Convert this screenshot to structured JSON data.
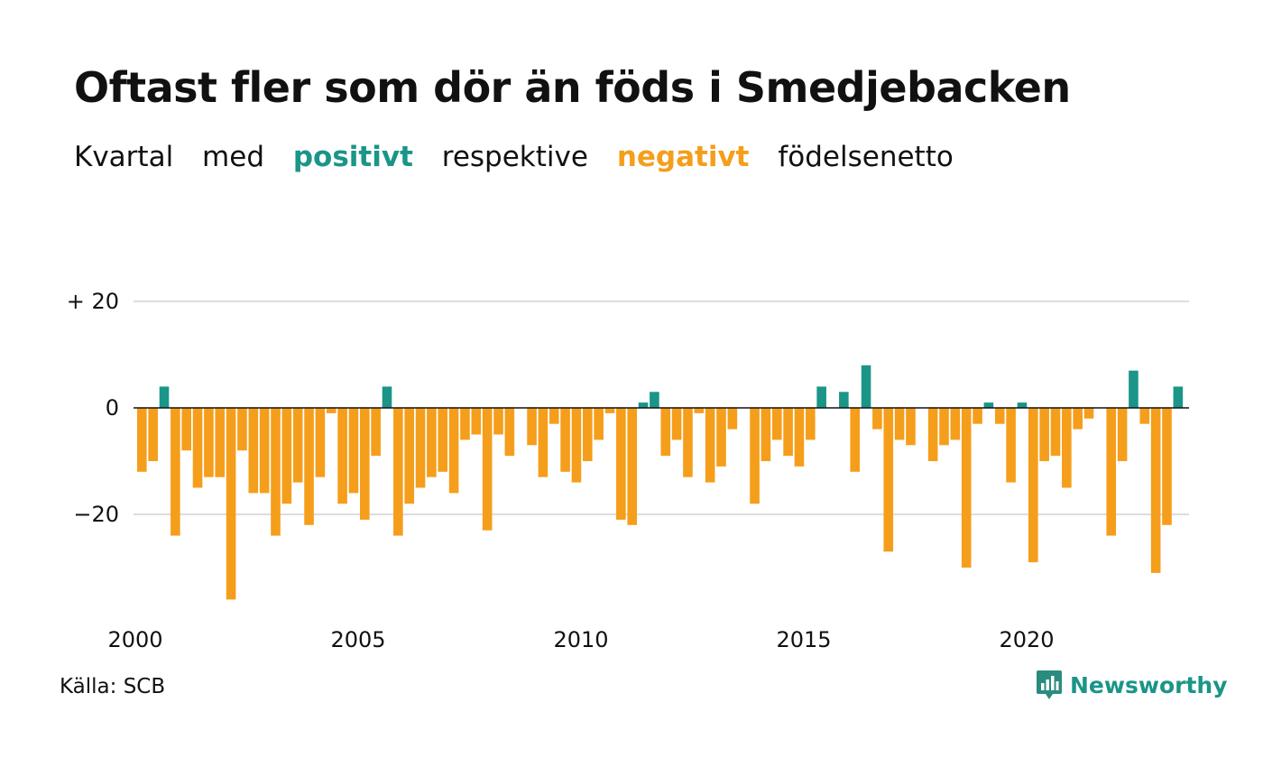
{
  "title": "Oftast fler som dör än föds i Smedjebacken",
  "subtitle": {
    "part1": "Kvartal",
    "part2": "med",
    "positive": "positivt",
    "part3": "respektive",
    "negative": "negativt",
    "part4": "födelsenetto"
  },
  "colors": {
    "positive": "#1a9588",
    "negative": "#f59e1b",
    "gridline": "#dddddd",
    "zeroline": "#111111",
    "text": "#111111"
  },
  "source": "Källa: SCB",
  "brand": {
    "name": "Newsworthy",
    "icon": "newsworthy-logo-icon"
  },
  "chart_data": {
    "type": "bar",
    "title": "Oftast fler som dör än föds i Smedjebacken",
    "subtitle": "Kvartal med positivt respektive negativt födelsenetto",
    "xlabel": "",
    "ylabel": "",
    "ylim": [
      -37,
      21
    ],
    "grid": true,
    "legend": "none",
    "y_ticks": [
      {
        "value": 20,
        "label": "+ 20"
      },
      {
        "value": 0,
        "label": "0"
      },
      {
        "value": -20,
        "label": "−20"
      }
    ],
    "x_ticks": [
      "2000",
      "2005",
      "2010",
      "2015",
      "2020"
    ],
    "categories": [
      "2000 K1",
      "2000 K2",
      "2000 K3",
      "2000 K4",
      "2001 K1",
      "2001 K2",
      "2001 K3",
      "2001 K4",
      "2002 K1",
      "2002 K2",
      "2002 K3",
      "2002 K4",
      "2003 K1",
      "2003 K2",
      "2003 K3",
      "2003 K4",
      "2004 K1",
      "2004 K2",
      "2004 K3",
      "2004 K4",
      "2005 K1",
      "2005 K2",
      "2005 K3",
      "2005 K4",
      "2006 K1",
      "2006 K2",
      "2006 K3",
      "2006 K4",
      "2007 K1",
      "2007 K2",
      "2007 K3",
      "2007 K4",
      "2008 K1",
      "2008 K2",
      "2008 K3",
      "2008 K4",
      "2009 K1",
      "2009 K2",
      "2009 K3",
      "2009 K4",
      "2010 K1",
      "2010 K2",
      "2010 K3",
      "2010 K4",
      "2011 K1",
      "2011 K2",
      "2011 K3",
      "2011 K4",
      "2012 K1",
      "2012 K2",
      "2012 K3",
      "2012 K4",
      "2013 K1",
      "2013 K2",
      "2013 K3",
      "2013 K4",
      "2014 K1",
      "2014 K2",
      "2014 K3",
      "2014 K4",
      "2015 K1",
      "2015 K2",
      "2015 K3",
      "2015 K4",
      "2016 K1",
      "2016 K2",
      "2016 K3",
      "2016 K4",
      "2017 K1",
      "2017 K2",
      "2017 K3",
      "2017 K4",
      "2018 K1",
      "2018 K2",
      "2018 K3",
      "2018 K4",
      "2019 K1",
      "2019 K2",
      "2019 K3",
      "2019 K4",
      "2020 K1",
      "2020 K2",
      "2020 K3",
      "2020 K4",
      "2021 K1",
      "2021 K2",
      "2021 K3",
      "2021 K4",
      "2022 K1",
      "2022 K2",
      "2022 K3",
      "2022 K4",
      "2023 K1",
      "2023 K2",
      "2023 K3",
      "2023 K4"
    ],
    "values": [
      -12,
      -10,
      4,
      -24,
      -8,
      -15,
      -13,
      -13,
      -36,
      -8,
      -16,
      -16,
      -24,
      -18,
      -14,
      -22,
      -13,
      -1,
      -18,
      -16,
      -21,
      -9,
      4,
      -24,
      -18,
      -15,
      -13,
      -12,
      -16,
      -6,
      -5,
      -23,
      -5,
      -9,
      0,
      -7,
      -13,
      -3,
      -12,
      -14,
      -10,
      -6,
      -1,
      -21,
      -22,
      1,
      3,
      -9,
      -6,
      -13,
      -1,
      -14,
      -11,
      -4,
      0,
      -18,
      -10,
      -6,
      -9,
      -11,
      -6,
      4,
      0,
      3,
      -12,
      8,
      -4,
      -27,
      -6,
      -7,
      0,
      -10,
      -7,
      -6,
      -30,
      -3,
      1,
      -3,
      -14,
      1,
      -29,
      -10,
      -9,
      -15,
      -4,
      -2,
      0,
      -24,
      -10,
      7,
      -3,
      -31,
      -22,
      4,
      null,
      null
    ]
  }
}
